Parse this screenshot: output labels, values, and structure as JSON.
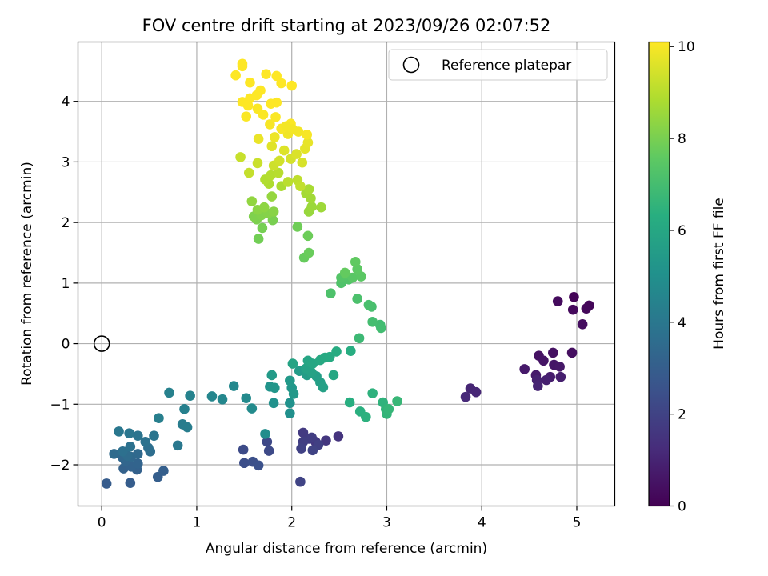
{
  "chart_data": {
    "type": "scatter",
    "title": "FOV centre drift starting at 2023/09/26 02:07:52",
    "xlabel": "Angular distance from reference (arcmin)",
    "ylabel": "Rotation from reference (arcmin)",
    "xlim": [
      -0.25,
      5.4
    ],
    "ylim": [
      -2.68,
      4.98
    ],
    "xticks": [
      0,
      1,
      2,
      3,
      4,
      5
    ],
    "xtick_labels": [
      "0",
      "1",
      "2",
      "3",
      "4",
      "5"
    ],
    "yticks": [
      -2,
      -1,
      0,
      1,
      2,
      3,
      4
    ],
    "ytick_labels": [
      "−2",
      "−1",
      "0",
      "1",
      "2",
      "3",
      "4"
    ],
    "grid": true,
    "legend": {
      "location": "top-right",
      "entries": [
        "Reference platepar"
      ]
    },
    "colorbar": {
      "label": "Hours from first FF file",
      "colormap": "viridis",
      "range": [
        0,
        10.1
      ],
      "ticks": [
        0,
        2,
        4,
        6,
        8,
        10
      ],
      "tick_labels": [
        "0",
        "2",
        "4",
        "6",
        "8",
        "10"
      ]
    },
    "reference_point": {
      "x": 0,
      "y": 0,
      "label": "Reference platepar"
    },
    "series": [
      {
        "points": [
          [
            4.97,
            0.77,
            0.1
          ],
          [
            5.13,
            0.63,
            0.15
          ],
          [
            5.1,
            0.58,
            0.2
          ],
          [
            4.96,
            0.56,
            0.25
          ],
          [
            4.8,
            0.7,
            0.3
          ],
          [
            5.06,
            0.32,
            0.35
          ],
          [
            4.95,
            -0.15,
            0.4
          ],
          [
            4.75,
            -0.15,
            0.45
          ],
          [
            4.6,
            -0.2,
            0.5
          ],
          [
            4.65,
            -0.28,
            0.55
          ],
          [
            4.76,
            -0.35,
            0.6
          ],
          [
            4.82,
            -0.38,
            0.65
          ],
          [
            4.45,
            -0.42,
            0.7
          ],
          [
            4.57,
            -0.52,
            0.75
          ],
          [
            4.72,
            -0.55,
            0.8
          ],
          [
            4.83,
            -0.55,
            0.85
          ],
          [
            4.68,
            -0.6,
            0.9
          ],
          [
            4.58,
            -0.6,
            0.95
          ],
          [
            4.59,
            -0.7,
            1.0
          ],
          [
            3.88,
            -0.74,
            1.05
          ],
          [
            3.94,
            -0.8,
            1.1
          ],
          [
            3.83,
            -0.88,
            1.15
          ],
          [
            2.49,
            -1.53,
            1.5
          ],
          [
            2.36,
            -1.6,
            1.6
          ],
          [
            2.25,
            -1.62,
            1.65
          ],
          [
            2.12,
            -1.47,
            1.7
          ],
          [
            2.18,
            -1.57,
            1.75
          ],
          [
            2.21,
            -1.55,
            1.8
          ],
          [
            2.12,
            -1.62,
            1.85
          ],
          [
            2.28,
            -1.67,
            1.9
          ],
          [
            2.1,
            -1.73,
            1.95
          ],
          [
            2.22,
            -1.76,
            2.0
          ],
          [
            2.09,
            -2.28,
            2.05
          ],
          [
            1.74,
            -1.62,
            2.2
          ],
          [
            1.76,
            -1.77,
            2.25
          ],
          [
            1.49,
            -1.75,
            2.3
          ],
          [
            1.5,
            -1.97,
            2.4
          ],
          [
            1.59,
            -1.95,
            2.45
          ],
          [
            1.65,
            -2.01,
            2.5
          ],
          [
            0.05,
            -2.31,
            2.9
          ],
          [
            0.3,
            -2.3,
            2.95
          ],
          [
            0.59,
            -2.2,
            3.0
          ],
          [
            0.65,
            -2.1,
            3.05
          ],
          [
            0.37,
            -2.08,
            3.1
          ],
          [
            0.23,
            -2.06,
            3.15
          ],
          [
            0.31,
            -2.03,
            3.2
          ],
          [
            0.38,
            -1.98,
            3.25
          ],
          [
            0.25,
            -1.94,
            3.3
          ],
          [
            0.22,
            -1.88,
            3.35
          ],
          [
            0.31,
            -1.87,
            3.4
          ],
          [
            0.38,
            -1.82,
            3.45
          ],
          [
            0.13,
            -1.82,
            3.5
          ],
          [
            0.27,
            -1.85,
            3.55
          ],
          [
            0.51,
            -1.78,
            3.6
          ],
          [
            0.49,
            -1.72,
            3.65
          ],
          [
            0.22,
            -1.78,
            3.7
          ],
          [
            0.3,
            -1.7,
            3.75
          ],
          [
            0.46,
            -1.62,
            3.8
          ],
          [
            0.38,
            -1.52,
            3.85
          ],
          [
            0.55,
            -1.52,
            3.9
          ],
          [
            0.29,
            -1.48,
            3.95
          ],
          [
            0.18,
            -1.45,
            4.0
          ],
          [
            0.8,
            -1.68,
            4.05
          ],
          [
            0.85,
            -1.33,
            4.2
          ],
          [
            0.9,
            -1.38,
            4.25
          ],
          [
            0.6,
            -1.23,
            4.3
          ],
          [
            0.87,
            -1.08,
            4.35
          ],
          [
            0.71,
            -0.81,
            4.4
          ],
          [
            0.93,
            -0.86,
            4.45
          ],
          [
            1.16,
            -0.87,
            4.6
          ],
          [
            1.27,
            -0.92,
            4.65
          ],
          [
            1.39,
            -0.7,
            4.7
          ],
          [
            1.52,
            -0.9,
            4.75
          ],
          [
            1.58,
            -1.07,
            4.8
          ],
          [
            1.72,
            -1.49,
            4.9
          ],
          [
            1.98,
            -1.15,
            5.0
          ],
          [
            1.81,
            -0.98,
            5.05
          ],
          [
            1.98,
            -0.98,
            5.1
          ],
          [
            1.77,
            -0.71,
            5.2
          ],
          [
            1.82,
            -0.73,
            5.25
          ],
          [
            2.0,
            -0.73,
            5.3
          ],
          [
            2.02,
            -0.83,
            5.35
          ],
          [
            1.98,
            -0.61,
            5.4
          ],
          [
            1.79,
            -0.52,
            5.45
          ],
          [
            2.08,
            -0.45,
            5.5
          ],
          [
            2.16,
            -0.52,
            5.55
          ],
          [
            2.26,
            -0.54,
            5.6
          ],
          [
            2.3,
            -0.64,
            5.65
          ],
          [
            2.33,
            -0.72,
            5.7
          ],
          [
            2.21,
            -0.48,
            5.75
          ],
          [
            2.15,
            -0.41,
            5.8
          ],
          [
            2.01,
            -0.33,
            5.85
          ],
          [
            2.17,
            -0.28,
            5.9
          ],
          [
            2.22,
            -0.33,
            5.95
          ],
          [
            2.44,
            -0.52,
            6.0
          ],
          [
            2.3,
            -0.27,
            6.05
          ],
          [
            2.35,
            -0.23,
            6.1
          ],
          [
            2.4,
            -0.22,
            6.15
          ],
          [
            2.47,
            -0.13,
            6.2
          ],
          [
            2.62,
            -0.12,
            6.25
          ],
          [
            2.61,
            -0.97,
            6.3
          ],
          [
            2.72,
            -1.12,
            6.35
          ],
          [
            2.78,
            -1.21,
            6.4
          ],
          [
            2.85,
            -0.82,
            6.45
          ],
          [
            2.96,
            -0.97,
            6.5
          ],
          [
            2.99,
            -1.08,
            6.55
          ],
          [
            3.0,
            -1.16,
            6.6
          ],
          [
            3.02,
            -1.08,
            6.65
          ],
          [
            3.11,
            -0.95,
            6.7
          ],
          [
            2.71,
            0.09,
            6.8
          ],
          [
            2.93,
            0.31,
            6.9
          ],
          [
            2.94,
            0.26,
            6.95
          ],
          [
            2.85,
            0.36,
            7.0
          ],
          [
            2.84,
            0.61,
            7.05
          ],
          [
            2.81,
            0.64,
            7.1
          ],
          [
            2.69,
            0.74,
            7.15
          ],
          [
            2.41,
            0.83,
            7.2
          ],
          [
            2.52,
            1.0,
            7.25
          ],
          [
            2.6,
            1.06,
            7.3
          ],
          [
            2.52,
            1.09,
            7.35
          ],
          [
            2.57,
            1.14,
            7.4
          ],
          [
            2.64,
            1.09,
            7.45
          ],
          [
            2.73,
            1.11,
            7.5
          ],
          [
            2.69,
            1.23,
            7.55
          ],
          [
            2.67,
            1.35,
            7.6
          ],
          [
            2.56,
            1.17,
            7.65
          ],
          [
            2.13,
            1.42,
            7.7
          ],
          [
            2.18,
            1.5,
            7.75
          ],
          [
            2.17,
            1.78,
            7.8
          ],
          [
            2.06,
            1.93,
            7.85
          ],
          [
            1.65,
            1.73,
            7.9
          ],
          [
            1.69,
            1.91,
            7.95
          ],
          [
            1.8,
            2.04,
            8.0
          ],
          [
            1.63,
            2.05,
            8.05
          ],
          [
            1.6,
            2.1,
            8.1
          ],
          [
            1.68,
            2.12,
            8.15
          ],
          [
            1.75,
            2.15,
            8.2
          ],
          [
            1.81,
            2.18,
            8.25
          ],
          [
            1.64,
            2.21,
            8.3
          ],
          [
            1.71,
            2.25,
            8.35
          ],
          [
            1.58,
            2.35,
            8.4
          ],
          [
            1.79,
            2.43,
            8.45
          ],
          [
            2.18,
            2.18,
            8.5
          ],
          [
            2.21,
            2.26,
            8.55
          ],
          [
            2.31,
            2.25,
            8.6
          ],
          [
            2.2,
            2.4,
            8.65
          ],
          [
            2.15,
            2.48,
            8.7
          ],
          [
            2.18,
            2.55,
            8.75
          ],
          [
            1.89,
            2.6,
            8.8
          ],
          [
            1.76,
            2.64,
            8.85
          ],
          [
            1.72,
            2.71,
            8.9
          ],
          [
            1.78,
            2.78,
            8.95
          ],
          [
            1.86,
            2.82,
            9.0
          ],
          [
            1.96,
            2.67,
            9.05
          ],
          [
            2.06,
            2.7,
            9.1
          ],
          [
            2.09,
            2.6,
            9.15
          ],
          [
            1.55,
            2.82,
            9.2
          ],
          [
            1.46,
            3.08,
            9.25
          ],
          [
            1.64,
            2.98,
            9.3
          ],
          [
            1.81,
            2.94,
            9.35
          ],
          [
            1.87,
            3.02,
            9.4
          ],
          [
            1.99,
            3.05,
            9.45
          ],
          [
            2.11,
            2.99,
            9.5
          ],
          [
            2.05,
            3.13,
            9.55
          ],
          [
            1.92,
            3.19,
            9.6
          ],
          [
            1.79,
            3.26,
            9.65
          ],
          [
            2.14,
            3.22,
            9.7
          ],
          [
            2.17,
            3.32,
            9.75
          ],
          [
            1.65,
            3.38,
            9.8
          ],
          [
            1.82,
            3.41,
            9.85
          ],
          [
            1.96,
            3.46,
            9.9
          ],
          [
            2.07,
            3.5,
            9.95
          ],
          [
            2.16,
            3.45,
            10.0
          ],
          [
            1.89,
            3.55,
            10.0
          ],
          [
            1.77,
            3.62,
            10.0
          ],
          [
            1.99,
            3.63,
            10.05
          ],
          [
            1.83,
            3.74,
            10.05
          ],
          [
            1.52,
            3.75,
            10.05
          ],
          [
            1.7,
            3.78,
            10.05
          ],
          [
            1.64,
            3.88,
            10.05
          ],
          [
            1.54,
            3.93,
            10.1
          ],
          [
            1.48,
            3.99,
            10.1
          ],
          [
            1.56,
            4.05,
            10.1
          ],
          [
            1.63,
            4.1,
            10.1
          ],
          [
            1.78,
            3.96,
            10.1
          ],
          [
            1.84,
            3.98,
            10.1
          ],
          [
            1.67,
            4.18,
            10.1
          ],
          [
            1.56,
            4.31,
            10.1
          ],
          [
            1.41,
            4.43,
            10.1
          ],
          [
            1.48,
            4.58,
            10.1
          ],
          [
            1.48,
            4.62,
            10.1
          ],
          [
            1.73,
            4.45,
            10.1
          ],
          [
            1.84,
            4.42,
            10.1
          ],
          [
            1.89,
            4.3,
            10.1
          ],
          [
            2.0,
            4.26,
            10.1
          ],
          [
            1.94,
            3.59,
            9.95
          ],
          [
            2.01,
            3.54,
            9.95
          ]
        ]
      }
    ]
  }
}
